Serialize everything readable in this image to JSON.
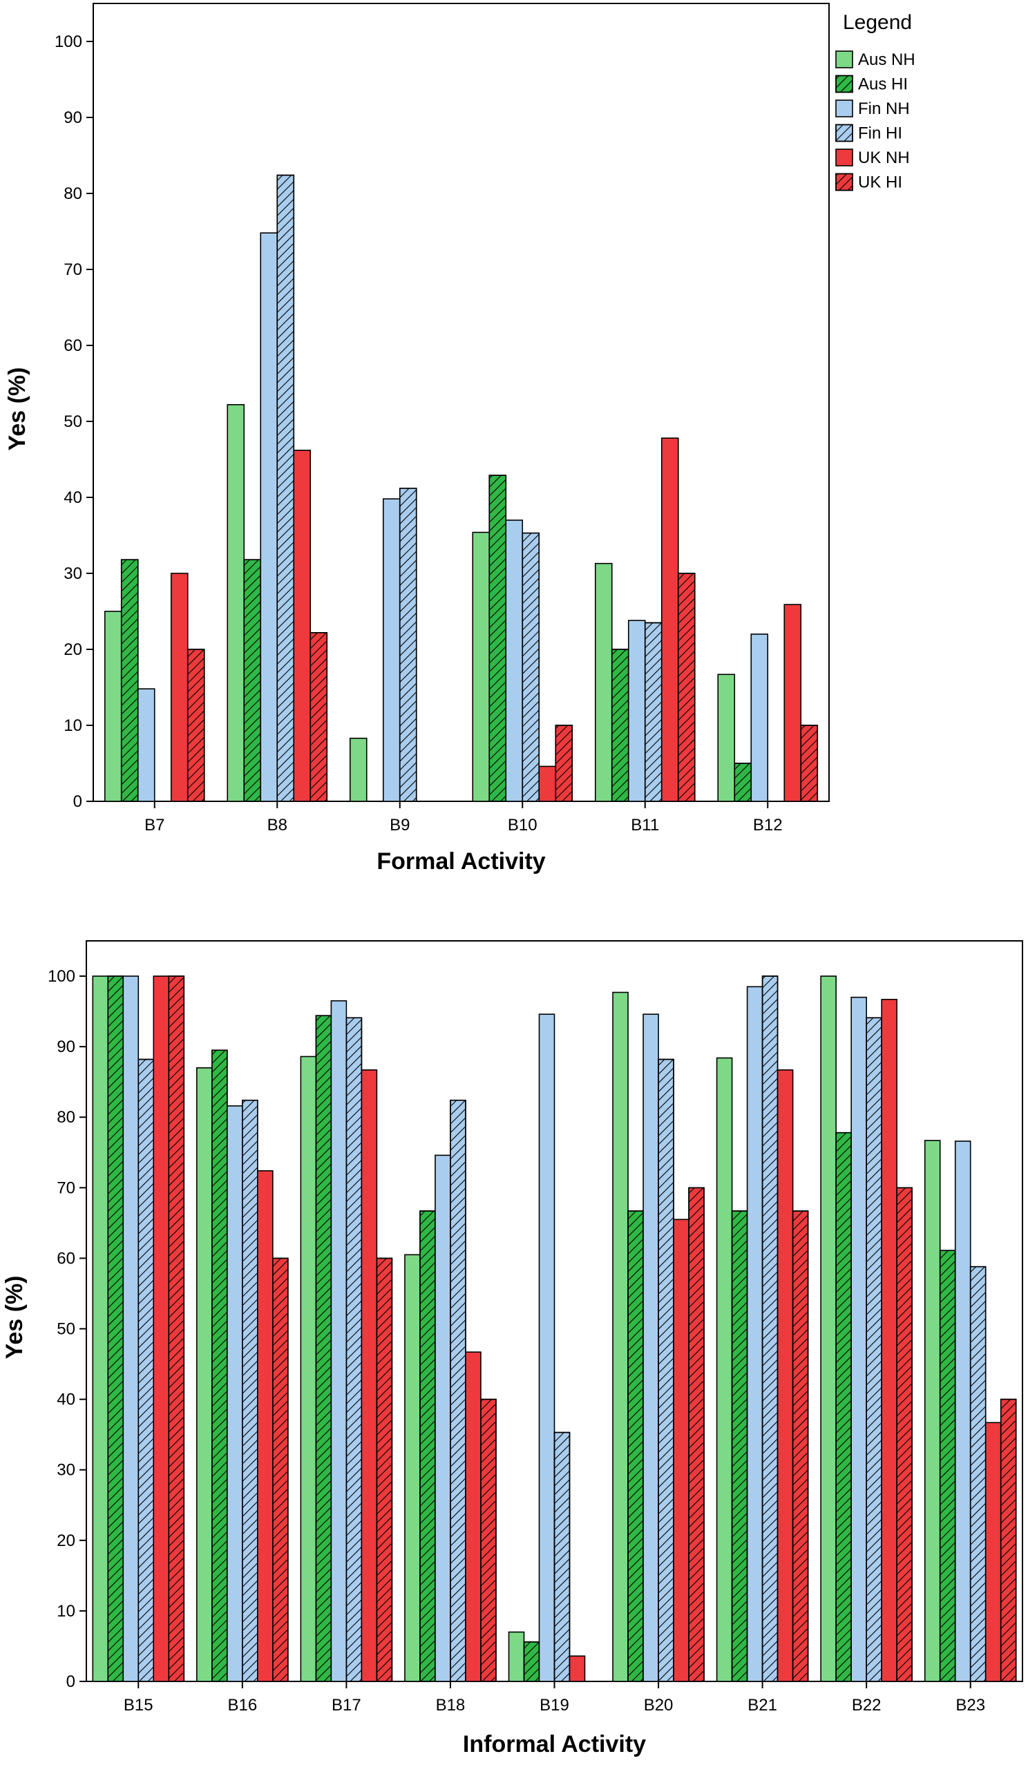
{
  "chart_data": [
    {
      "type": "bar",
      "title": "",
      "xlabel": "Formal Activity",
      "ylabel": "Yes (%)",
      "ylim": [
        0,
        105
      ],
      "yticks": [
        0,
        10,
        20,
        30,
        40,
        50,
        60,
        70,
        80,
        90,
        100
      ],
      "categories": [
        "B7",
        "B8",
        "B9",
        "B10",
        "B11",
        "B12"
      ],
      "legend": {
        "title": "Legend",
        "placement": "right"
      },
      "series": [
        {
          "name": "Aus NH",
          "color": "#7ed987",
          "hatch": false,
          "values": [
            25,
            52.2,
            8.3,
            35.4,
            31.3,
            16.7
          ]
        },
        {
          "name": "Aus HI",
          "color": "#2fb845",
          "hatch": true,
          "values": [
            31.8,
            31.8,
            0,
            42.9,
            20,
            5
          ]
        },
        {
          "name": "Fin NH",
          "color": "#a9cdee",
          "hatch": false,
          "values": [
            14.8,
            74.8,
            39.8,
            37,
            23.8,
            22
          ]
        },
        {
          "name": "Fin HI",
          "color": "#a9cdee",
          "hatch": true,
          "values": [
            0,
            82.4,
            41.2,
            35.3,
            23.5,
            0
          ]
        },
        {
          "name": "UK NH",
          "color": "#ee3a3d",
          "hatch": false,
          "values": [
            30,
            46.2,
            0,
            4.6,
            47.8,
            25.9
          ]
        },
        {
          "name": "UK HI",
          "color": "#ee3a3d",
          "hatch": true,
          "values": [
            20,
            22.2,
            0,
            10,
            30,
            10
          ]
        }
      ]
    },
    {
      "type": "bar",
      "title": "",
      "xlabel": "Informal Activity",
      "ylabel": "Yes (%)",
      "ylim": [
        0,
        105
      ],
      "yticks": [
        0,
        10,
        20,
        30,
        40,
        50,
        60,
        70,
        80,
        90,
        100
      ],
      "categories": [
        "B15",
        "B16",
        "B17",
        "B18",
        "B19",
        "B20",
        "B21",
        "B22",
        "B23"
      ],
      "series": [
        {
          "name": "Aus NH",
          "color": "#7ed987",
          "hatch": false,
          "values": [
            100,
            87,
            88.6,
            60.5,
            7,
            97.7,
            88.4,
            100,
            76.7
          ]
        },
        {
          "name": "Aus HI",
          "color": "#2fb845",
          "hatch": true,
          "values": [
            100,
            89.5,
            94.4,
            66.7,
            5.6,
            66.7,
            66.7,
            77.8,
            61.1
          ]
        },
        {
          "name": "Fin NH",
          "color": "#a9cdee",
          "hatch": false,
          "values": [
            100,
            81.6,
            96.5,
            74.6,
            94.6,
            94.6,
            98.5,
            97,
            76.6
          ]
        },
        {
          "name": "Fin HI",
          "color": "#a9cdee",
          "hatch": true,
          "values": [
            88.2,
            82.4,
            94.1,
            82.4,
            35.3,
            88.2,
            100,
            94.1,
            58.8
          ]
        },
        {
          "name": "UK NH",
          "color": "#ee3a3d",
          "hatch": false,
          "values": [
            100,
            72.4,
            86.7,
            46.7,
            3.6,
            65.5,
            86.7,
            96.7,
            36.7
          ]
        },
        {
          "name": "UK HI",
          "color": "#ee3a3d",
          "hatch": true,
          "values": [
            100,
            60,
            60,
            40,
            0,
            70,
            66.7,
            70,
            40
          ]
        }
      ]
    }
  ]
}
